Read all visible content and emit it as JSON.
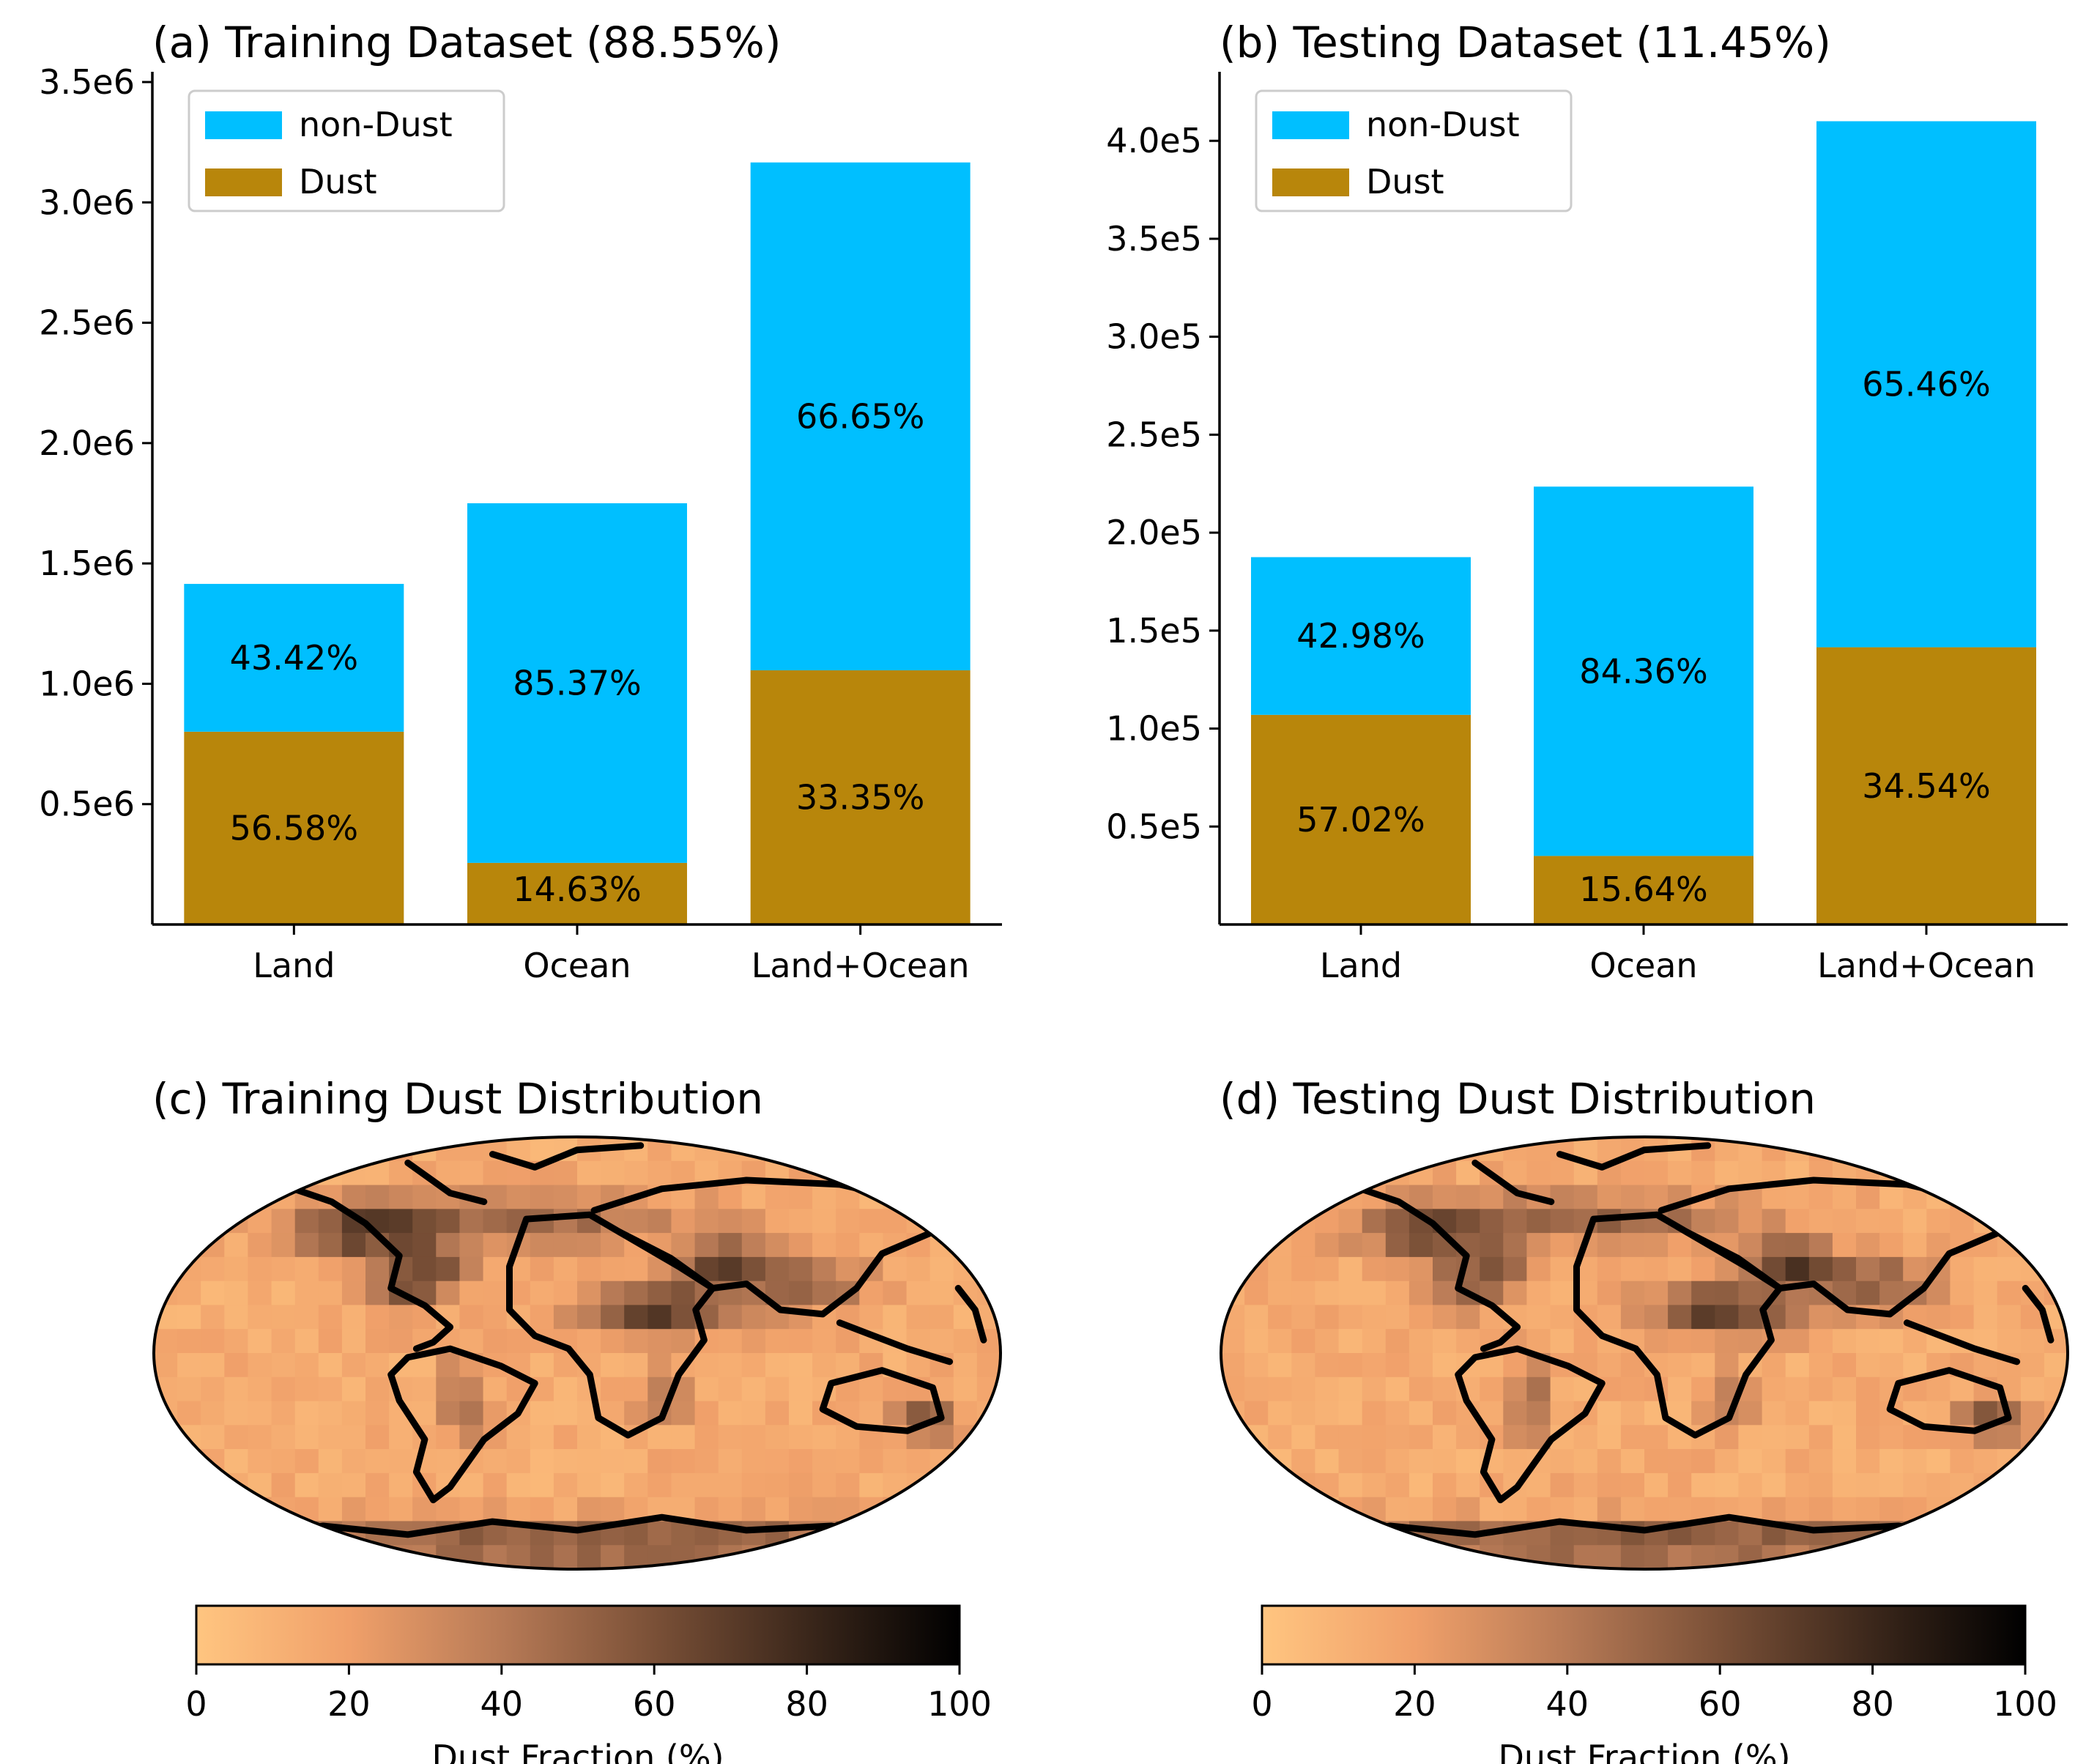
{
  "chart_data": [
    {
      "type": "bar",
      "stacked": true,
      "title": "(a) Training Dataset (88.55%)",
      "categories": [
        "Land",
        "Ocean",
        "Land+Ocean"
      ],
      "ylim": [
        0,
        3500000
      ],
      "yticks": [
        500000,
        1000000,
        1500000,
        2000000,
        2500000,
        3000000,
        3500000
      ],
      "yticklabels": [
        "0.5e6",
        "1.0e6",
        "1.5e6",
        "2.0e6",
        "2.5e6",
        "3.0e6",
        "3.5e6"
      ],
      "series": [
        {
          "name": "Dust",
          "color": "#b8860b",
          "values": [
            801000,
            256000,
            1056000
          ],
          "labels": [
            "56.58%",
            "14.63%",
            "33.35%"
          ]
        },
        {
          "name": "non-Dust",
          "color": "#00bfff",
          "values": [
            614000,
            1494000,
            2110000
          ],
          "labels": [
            "43.42%",
            "85.37%",
            "66.65%"
          ]
        }
      ],
      "legend": {
        "position": "top-left",
        "entries": [
          "non-Dust",
          "Dust"
        ]
      }
    },
    {
      "type": "bar",
      "stacked": true,
      "title": "(b) Testing Dataset (11.45%)",
      "categories": [
        "Land",
        "Ocean",
        "Land+Ocean"
      ],
      "ylim": [
        0,
        430000
      ],
      "yticks": [
        50000,
        100000,
        150000,
        200000,
        250000,
        300000,
        350000,
        400000
      ],
      "yticklabels": [
        "0.5e5",
        "1.0e5",
        "1.5e5",
        "2.0e5",
        "2.5e5",
        "3.0e5",
        "3.5e5",
        "4.0e5"
      ],
      "series": [
        {
          "name": "Dust",
          "color": "#b8860b",
          "values": [
            107000,
            35000,
            141500
          ],
          "labels": [
            "57.02%",
            "15.64%",
            "34.54%"
          ]
        },
        {
          "name": "non-Dust",
          "color": "#00bfff",
          "values": [
            80500,
            188500,
            268500
          ],
          "labels": [
            "42.98%",
            "84.36%",
            "65.46%"
          ]
        }
      ],
      "legend": {
        "position": "top-left",
        "entries": [
          "non-Dust",
          "Dust"
        ]
      }
    },
    {
      "type": "heatmap",
      "title": "(c) Training Dust Distribution",
      "projection": "robinson",
      "colorbar": {
        "label": "Dust Fraction (%)",
        "range": [
          0,
          100
        ],
        "ticks": [
          "0",
          "20",
          "40",
          "60",
          "80",
          "100"
        ]
      }
    },
    {
      "type": "heatmap",
      "title": "(d) Testing Dust Distribution",
      "projection": "robinson",
      "colorbar": {
        "label": "Dust Fraction (%)",
        "range": [
          0,
          100
        ],
        "ticks": [
          "0",
          "20",
          "40",
          "60",
          "80",
          "100"
        ]
      }
    }
  ]
}
